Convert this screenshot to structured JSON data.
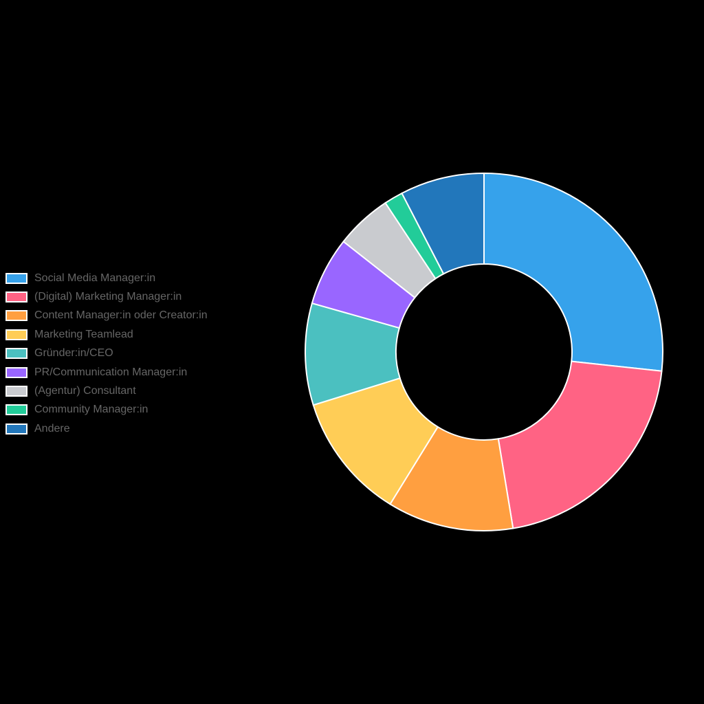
{
  "chart_data": {
    "type": "pie",
    "variant": "doughnut",
    "title": "",
    "legend_position": "left",
    "categories": [
      "Social Media Manager:in",
      "(Digital) Marketing Manager:in",
      "Content Manager:in oder Creator:in",
      "Marketing Teamlead",
      "Gründer:in/CEO",
      "PR/Communication Manager:in",
      "(Agentur) Consultant",
      "Community Manager:in",
      "Andere"
    ],
    "values": [
      26.7,
      20.7,
      11.4,
      11.4,
      9.2,
      6.2,
      5.1,
      1.7,
      7.6
    ],
    "unit": "percent (estimated)",
    "colors": [
      "#36a2eb",
      "#ff6384",
      "#ff9f40",
      "#ffcd56",
      "#4bc0c0",
      "#9966ff",
      "#c9cbcf",
      "#22cc99",
      "#2277bb"
    ]
  }
}
